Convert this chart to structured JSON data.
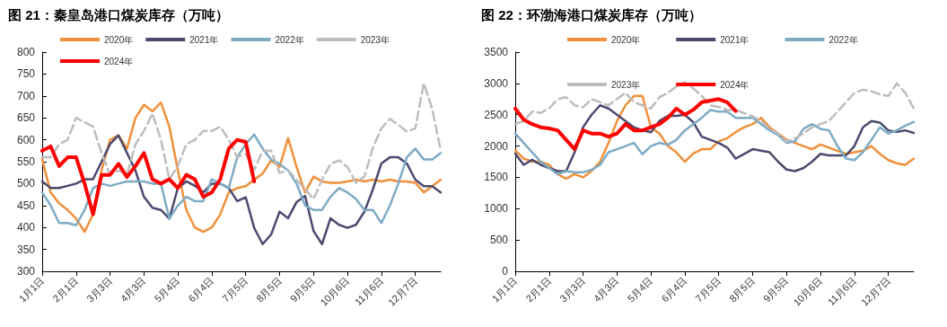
{
  "chart_data": [
    {
      "type": "line",
      "title": "图 21：秦皇岛港口煤炭库存（万吨）",
      "legend": "top",
      "grid": false,
      "marker": "none",
      "categories": [
        "1月1日",
        null,
        null,
        null,
        "2月1日",
        null,
        null,
        null,
        "3月3日",
        null,
        null,
        null,
        "4月3日",
        null,
        null,
        null,
        "5月4日",
        null,
        null,
        null,
        "6月4日",
        null,
        null,
        null,
        "7月5日",
        null,
        null,
        null,
        "8月5日",
        null,
        null,
        null,
        "9月5日",
        null,
        null,
        null,
        "10月6日",
        null,
        null,
        null,
        "11月6日",
        null,
        null,
        null,
        "12月7日",
        null,
        null,
        null
      ],
      "ylim": [
        300,
        800
      ],
      "yticks": [
        300,
        350,
        400,
        450,
        500,
        550,
        600,
        650,
        700,
        750,
        800
      ],
      "series": [
        {
          "name": "2020年",
          "color": "#f0903a",
          "line_style": "solid",
          "values": [
            555,
            480,
            455,
            440,
            420,
            390,
            430,
            530,
            600,
            610,
            580,
            650,
            680,
            665,
            685,
            630,
            530,
            440,
            400,
            390,
            400,
            430,
            480,
            490,
            494,
            509,
            523,
            553,
            538,
            604,
            538,
            480,
            516,
            505,
            502,
            502,
            505,
            509,
            505,
            509,
            505,
            509,
            505,
            505,
            502,
            480,
            494,
            509
          ]
        },
        {
          "name": "2021年",
          "color": "#4b4a6e",
          "line_style": "solid",
          "values": [
            505,
            490,
            490,
            495,
            500,
            510,
            510,
            550,
            590,
            610,
            570,
            530,
            470,
            445,
            440,
            420,
            490,
            505,
            495,
            480,
            500,
            500,
            490,
            460,
            469,
            399,
            362,
            384,
            436,
            421,
            458,
            472,
            392,
            362,
            421,
            406,
            399,
            406,
            436,
            487,
            546,
            560,
            560,
            546,
            509,
            494,
            494,
            480
          ]
        },
        {
          "name": "2022年",
          "color": "#7eabc4",
          "line_style": "solid",
          "values": [
            480,
            450,
            410,
            410,
            405,
            440,
            490,
            500,
            495,
            500,
            505,
            505,
            505,
            500,
            500,
            420,
            450,
            470,
            460,
            460,
            510,
            500,
            490,
            560,
            590,
            612,
            580,
            555,
            545,
            530,
            500,
            450,
            440,
            440,
            470,
            490,
            480,
            465,
            440,
            440,
            410,
            450,
            500,
            560,
            580,
            555,
            555,
            570
          ]
        },
        {
          "name": "2023年",
          "color": "#bdbdbd",
          "line_style": "dashed",
          "values": [
            560,
            560,
            590,
            600,
            650,
            640,
            630,
            570,
            520,
            530,
            520,
            590,
            620,
            660,
            600,
            510,
            540,
            590,
            600,
            620,
            620,
            630,
            600,
            560,
            568,
            531,
            575,
            575,
            524,
            531,
            509,
            487,
            465,
            509,
            545,
            553,
            538,
            502,
            516,
            582,
            626,
            648,
            634,
            619,
            626,
            729,
            670,
            575
          ]
        },
        {
          "name": "2024年",
          "color": "#ff0000",
          "line_style": "solid",
          "values": [
            575,
            585,
            540,
            560,
            560,
            500,
            430,
            520,
            520,
            545,
            515,
            540,
            570,
            510,
            500,
            510,
            490,
            520,
            510,
            470,
            480,
            510,
            580,
            600,
            595,
            505,
            null,
            null,
            null,
            null,
            null,
            null,
            null,
            null,
            null,
            null,
            null,
            null,
            null,
            null,
            null,
            null,
            null,
            null,
            null,
            null,
            null,
            null
          ]
        }
      ]
    },
    {
      "type": "line",
      "title": "图 22：环渤海港口煤炭库存（万吨）",
      "legend": "top",
      "grid": false,
      "marker": "none",
      "categories": [
        "1月1日",
        null,
        null,
        null,
        "2月1日",
        null,
        null,
        null,
        "3月3日",
        null,
        null,
        null,
        "4月3日",
        null,
        null,
        null,
        "5月4日",
        null,
        null,
        null,
        "6月4日",
        null,
        null,
        null,
        "7月5日",
        null,
        null,
        null,
        "8月5日",
        null,
        null,
        null,
        "9月5日",
        null,
        null,
        null,
        "10月6日",
        null,
        null,
        null,
        "11月6日",
        null,
        null,
        null,
        "12月7日",
        null,
        null,
        null
      ],
      "ylim": [
        0,
        3500
      ],
      "yticks": [
        0,
        500,
        1000,
        1500,
        2000,
        2500,
        3000,
        3500
      ],
      "series": [
        {
          "name": "2020年",
          "color": "#f0903a",
          "line_style": "solid",
          "values": [
            1930,
            1800,
            1750,
            1750,
            1700,
            1550,
            1480,
            1550,
            1500,
            1600,
            1750,
            2050,
            2400,
            2650,
            2800,
            2800,
            2300,
            2200,
            2000,
            1900,
            1750,
            1880,
            1950,
            1950,
            2075,
            2125,
            2225,
            2300,
            2350,
            2450,
            2300,
            2200,
            2100,
            2050,
            2000,
            1950,
            2025,
            1975,
            1925,
            1875,
            1900,
            1925,
            2000,
            1875,
            1775,
            1725,
            1700,
            1800
          ]
        },
        {
          "name": "2021年",
          "color": "#4b4a6e",
          "line_style": "solid",
          "values": [
            1880,
            1700,
            1780,
            1700,
            1650,
            1600,
            1600,
            1900,
            2300,
            2500,
            2650,
            2600,
            2500,
            2400,
            2300,
            2250,
            2220,
            2400,
            2480,
            2480,
            2500,
            2380,
            2150,
            2100,
            2050,
            1975,
            1800,
            1875,
            1950,
            1925,
            1900,
            1750,
            1625,
            1600,
            1650,
            1750,
            1875,
            1850,
            1850,
            1850,
            2000,
            2300,
            2400,
            2375,
            2250,
            2225,
            2250,
            2210
          ]
        },
        {
          "name": "2022年",
          "color": "#7eabc4",
          "line_style": "solid",
          "values": [
            2200,
            2050,
            1900,
            1750,
            1650,
            1550,
            1600,
            1580,
            1580,
            1620,
            1700,
            1900,
            1950,
            2000,
            2050,
            1870,
            2000,
            2050,
            2020,
            2100,
            2250,
            2350,
            2450,
            2575,
            2550,
            2550,
            2450,
            2450,
            2450,
            2350,
            2250,
            2175,
            2050,
            2075,
            2275,
            2350,
            2275,
            2250,
            2000,
            1800,
            1775,
            1900,
            2100,
            2300,
            2200,
            2250,
            2325,
            2385
          ]
        },
        {
          "name": "2023年",
          "color": "#bdbdbd",
          "line_style": "dashed",
          "values": [
            2350,
            2400,
            2550,
            2530,
            2600,
            2750,
            2780,
            2650,
            2620,
            2750,
            2700,
            2650,
            2750,
            2850,
            2700,
            2650,
            2600,
            2780,
            2850,
            2950,
            3020,
            2920,
            2800,
            2650,
            2625,
            2575,
            2575,
            2525,
            2475,
            2400,
            2275,
            2200,
            2075,
            2125,
            2200,
            2300,
            2350,
            2400,
            2550,
            2700,
            2850,
            2900,
            2875,
            2825,
            2800,
            3000,
            2850,
            2600
          ]
        },
        {
          "name": "2024年",
          "color": "#ff0000",
          "line_style": "solid",
          "values": [
            2600,
            2420,
            2350,
            2300,
            2280,
            2250,
            2100,
            1950,
            2250,
            2200,
            2200,
            2150,
            2200,
            2350,
            2250,
            2250,
            2300,
            2350,
            2450,
            2600,
            2500,
            2580,
            2700,
            2725,
            2750,
            2700,
            2560,
            null,
            null,
            null,
            null,
            null,
            null,
            null,
            null,
            null,
            null,
            null,
            null,
            null,
            null,
            null,
            null,
            null,
            null,
            null,
            null,
            null
          ]
        }
      ]
    }
  ]
}
